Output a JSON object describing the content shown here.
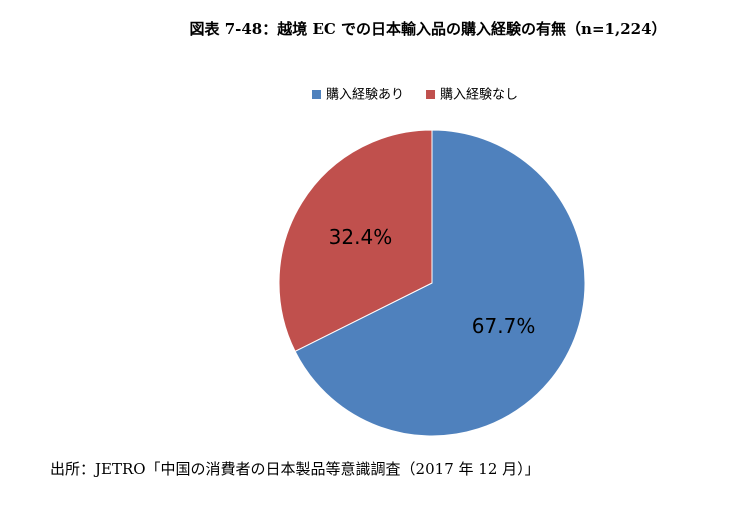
{
  "chart_data": {
    "type": "pie",
    "title": "図表 7-48：越境 EC での日本輸入品の購入経験の有無（n=1,224）",
    "categories": [
      "購入経験あり",
      "購入経験なし"
    ],
    "values": [
      67.7,
      32.4
    ],
    "value_labels": [
      "67.7%",
      "32.4%"
    ],
    "colors": [
      "#4f81bd",
      "#c0504d"
    ],
    "legend": "top",
    "source": "出所：JETRO「中国の消費者の日本製品等意識調査（2017 年 12 月）」"
  }
}
